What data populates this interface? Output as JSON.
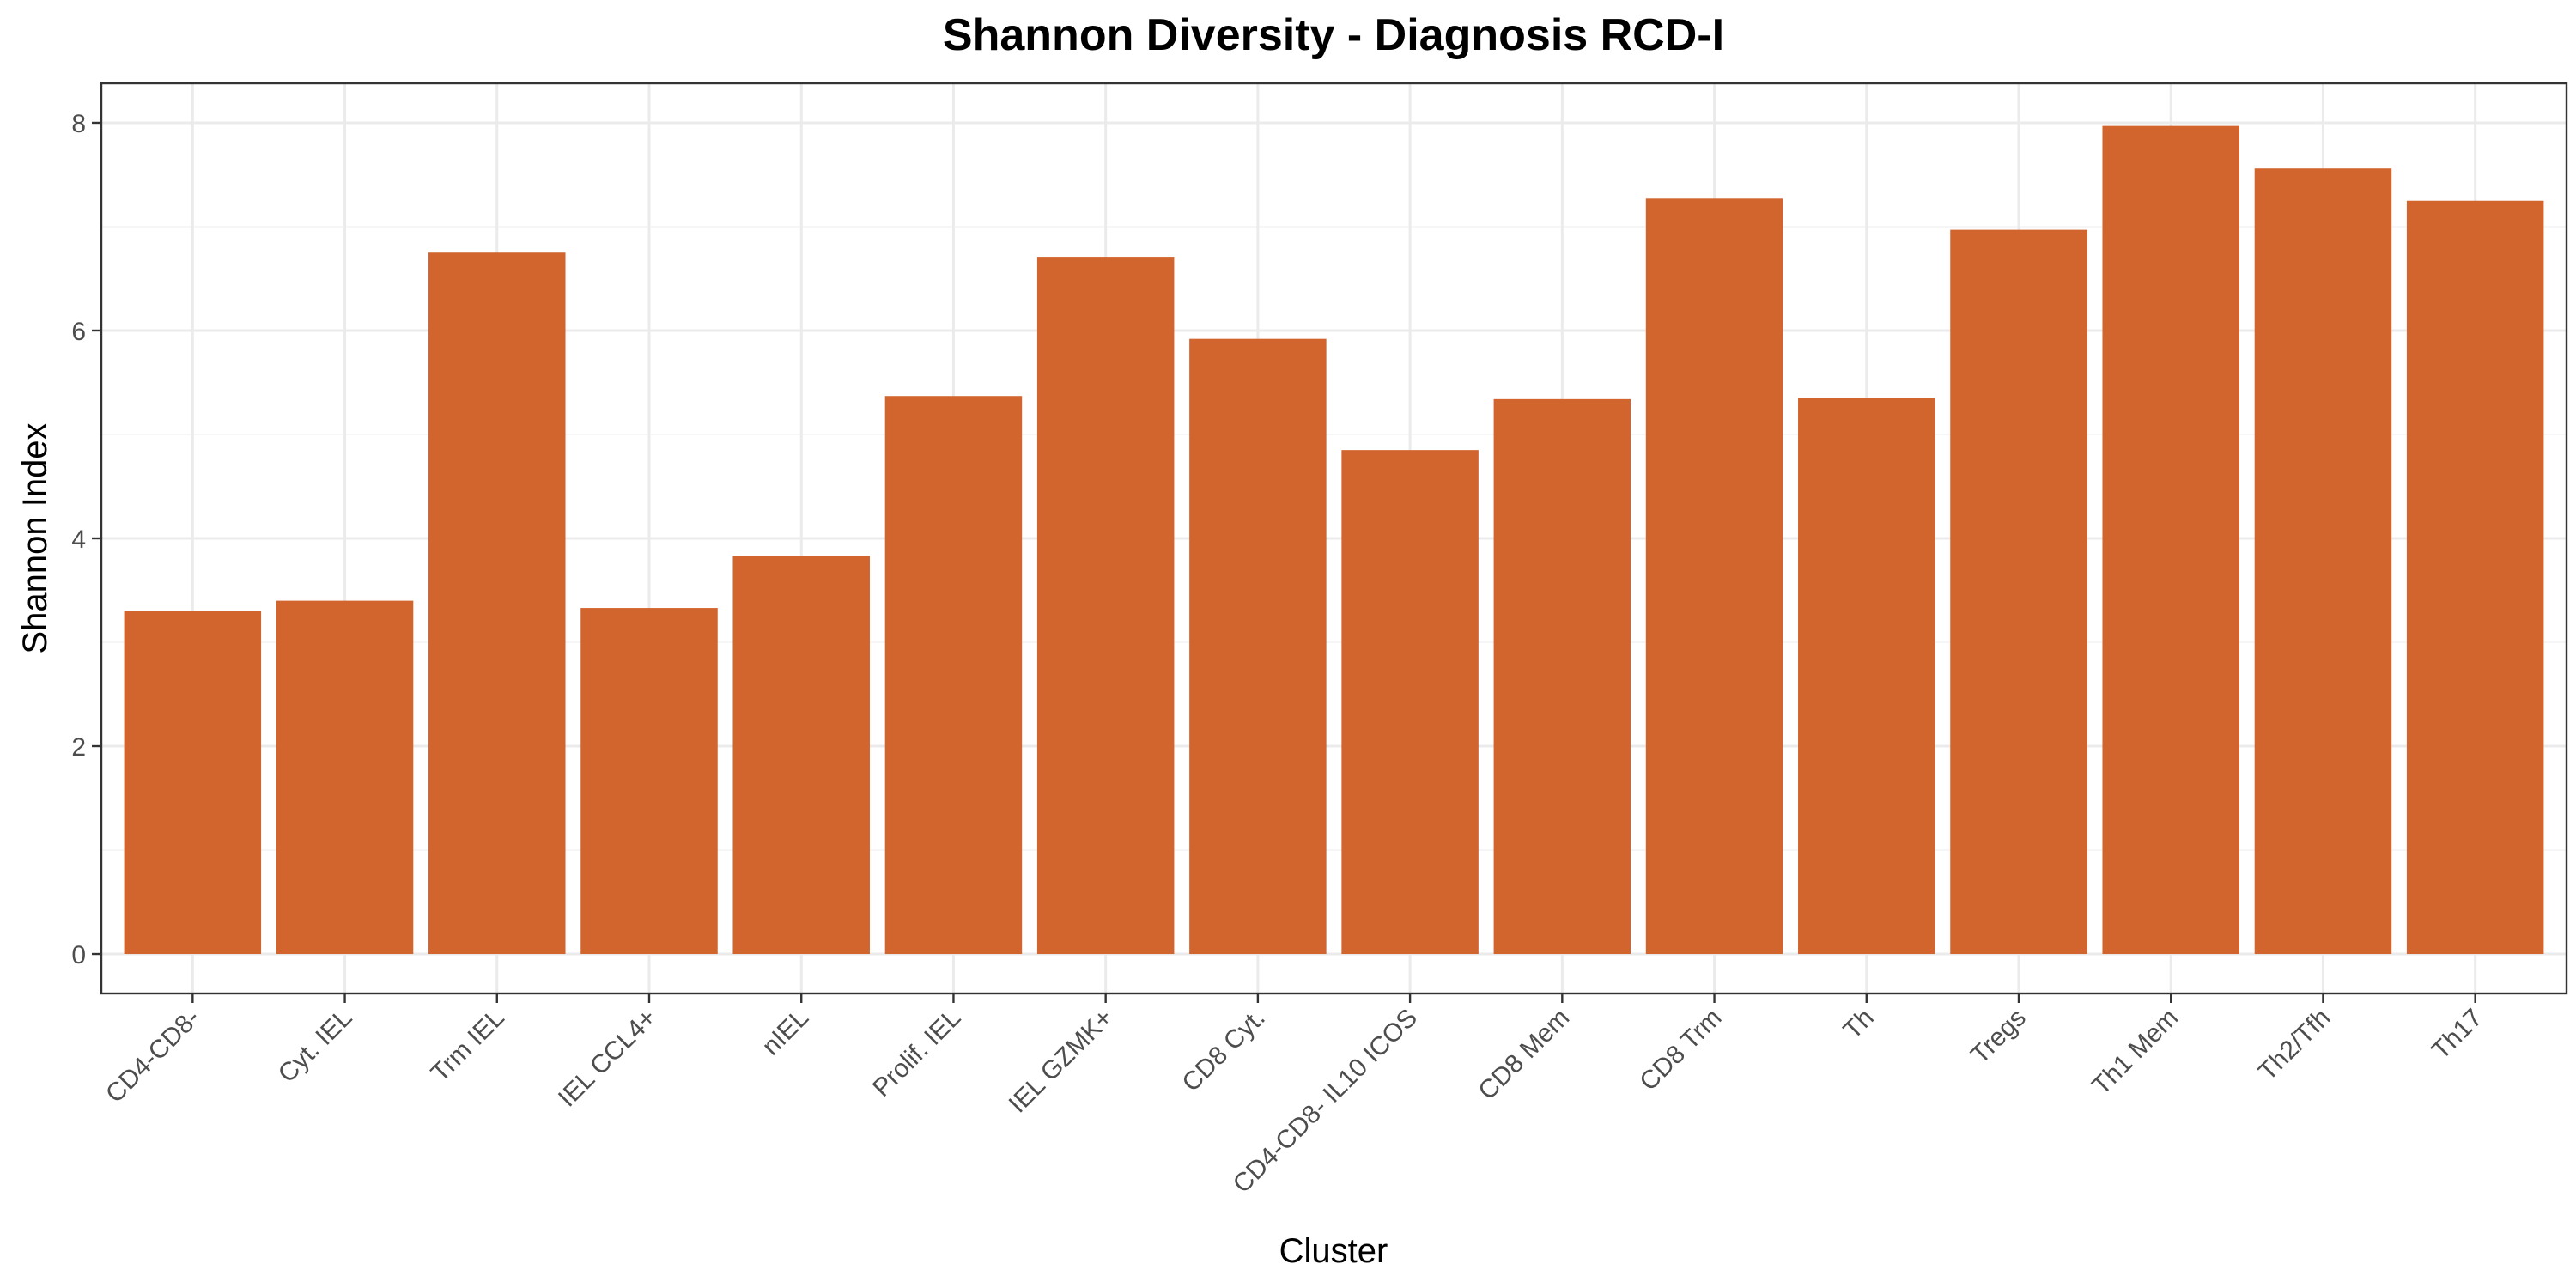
{
  "chart_data": {
    "type": "bar",
    "title": "Shannon Diversity - Diagnosis RCD-I",
    "xlabel": "Cluster",
    "ylabel": "Shannon Index",
    "categories": [
      "CD4-CD8-",
      "Cyt. IEL",
      "Trm IEL",
      "IEL CCL4+",
      "nIEL",
      "Prolif. IEL",
      "IEL GZMK+",
      "CD8 Cyt.",
      "CD4-CD8- IL10 ICOS",
      "CD8 Mem",
      "CD8 Trm",
      "Th",
      "Tregs",
      "Th1 Mem",
      "Th2/Tfh",
      "Th17"
    ],
    "values": [
      3.3,
      3.4,
      6.75,
      3.33,
      3.83,
      5.37,
      6.71,
      5.92,
      4.85,
      5.34,
      7.27,
      5.35,
      6.97,
      7.97,
      7.56,
      7.25
    ],
    "ylim": [
      -0.38,
      8.38
    ],
    "yticks": [
      0,
      2,
      4,
      6,
      8
    ],
    "bar_color": "#D2642D",
    "grid": true,
    "legend": "none"
  }
}
